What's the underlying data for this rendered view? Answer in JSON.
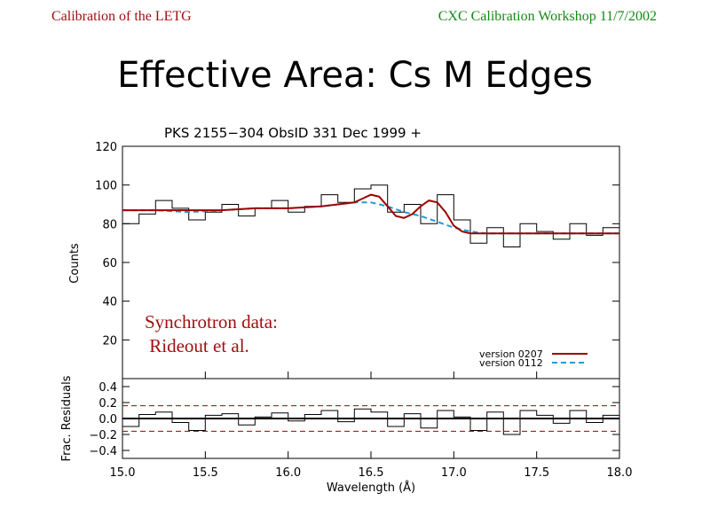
{
  "slide": {
    "header_left": "Calibration of the LETG",
    "header_right": "CXC Calibration Workshop 11/7/2002",
    "title": "Effective Area: Cs M Edges",
    "colors": {
      "header_left": "#a01010",
      "header_right": "#138a13",
      "annotation": "#a01010"
    }
  },
  "chart_data": [
    {
      "type": "line",
      "title": "PKS 2155−304   ObsID 331   Dec 1999      +",
      "xlabel": "",
      "ylabel": "Counts",
      "xlim": [
        15.0,
        18.0
      ],
      "ylim": [
        0,
        120
      ],
      "y_ticks": [
        "20",
        "40",
        "60",
        "80",
        "100",
        "120"
      ],
      "annotation": [
        "Synchrotron data:",
        " Rideout et al."
      ],
      "legend_position": "bottom-right",
      "series": [
        {
          "name": "version 0207",
          "color": "#a00000",
          "style": "solid",
          "x": [
            15.0,
            15.2,
            15.4,
            15.6,
            15.8,
            16.0,
            16.2,
            16.3,
            16.4,
            16.45,
            16.5,
            16.55,
            16.6,
            16.65,
            16.7,
            16.75,
            16.8,
            16.85,
            16.9,
            16.95,
            17.0,
            17.05,
            17.1,
            17.2,
            17.3,
            17.5,
            17.7,
            18.0
          ],
          "y": [
            87,
            87,
            87,
            87,
            88,
            88,
            89,
            90,
            91,
            93,
            95,
            94,
            89,
            84,
            83,
            85,
            89,
            92,
            91,
            86,
            79,
            76,
            75,
            75,
            75,
            75,
            75,
            75
          ]
        },
        {
          "name": "version 0112",
          "color": "#1e9bd7",
          "style": "dashed",
          "x": [
            15.0,
            15.2,
            15.4,
            15.6,
            15.8,
            16.0,
            16.2,
            16.3,
            16.4,
            16.5,
            16.6,
            16.7,
            16.8,
            16.9,
            17.0,
            17.1,
            17.2,
            17.4,
            17.6,
            18.0
          ],
          "y": [
            87,
            87,
            86,
            87,
            88,
            88,
            89,
            90,
            91,
            91,
            89,
            86,
            84,
            81,
            78,
            76,
            75,
            75,
            75,
            75
          ]
        },
        {
          "name": "data",
          "color": "#000000",
          "style": "histogram",
          "x": [
            15.0,
            15.1,
            15.2,
            15.3,
            15.4,
            15.5,
            15.6,
            15.7,
            15.8,
            15.9,
            16.0,
            16.1,
            16.2,
            16.3,
            16.4,
            16.5,
            16.6,
            16.7,
            16.8,
            16.9,
            17.0,
            17.1,
            17.2,
            17.3,
            17.4,
            17.5,
            17.6,
            17.7,
            17.8,
            17.9,
            18.0
          ],
          "y": [
            80,
            85,
            92,
            88,
            82,
            86,
            90,
            84,
            88,
            92,
            86,
            89,
            95,
            91,
            98,
            100,
            86,
            90,
            80,
            95,
            82,
            70,
            78,
            68,
            80,
            76,
            72,
            80,
            74,
            78,
            76
          ]
        }
      ]
    },
    {
      "type": "line",
      "title": "",
      "xlabel": "Wavelength (Å)",
      "ylabel": "Frac. Residuals",
      "xlim": [
        15.0,
        18.0
      ],
      "ylim": [
        -0.5,
        0.5
      ],
      "x_ticks": [
        "15.0",
        "15.5",
        "16.0",
        "16.5",
        "17.0",
        "17.5",
        "18.0"
      ],
      "y_ticks": [
        "−0.4",
        "−0.2",
        "0.0",
        "0.2",
        "0.4"
      ],
      "reference_lines": [
        0.16,
        0.0,
        -0.16
      ],
      "series": [
        {
          "name": "residuals",
          "color": "#000000",
          "style": "histogram",
          "x": [
            15.0,
            15.1,
            15.2,
            15.3,
            15.4,
            15.5,
            15.6,
            15.7,
            15.8,
            15.9,
            16.0,
            16.1,
            16.2,
            16.3,
            16.4,
            16.5,
            16.6,
            16.7,
            16.8,
            16.9,
            17.0,
            17.1,
            17.2,
            17.3,
            17.4,
            17.5,
            17.6,
            17.7,
            17.8,
            17.9,
            18.0
          ],
          "y": [
            -0.1,
            0.05,
            0.08,
            -0.05,
            -0.15,
            0.04,
            0.06,
            -0.08,
            0.02,
            0.07,
            -0.03,
            0.05,
            0.1,
            -0.04,
            0.12,
            0.08,
            -0.1,
            0.06,
            -0.12,
            0.1,
            0.02,
            -0.15,
            0.08,
            -0.2,
            0.1,
            0.04,
            -0.06,
            0.1,
            -0.05,
            0.04,
            0.02
          ]
        }
      ]
    }
  ]
}
